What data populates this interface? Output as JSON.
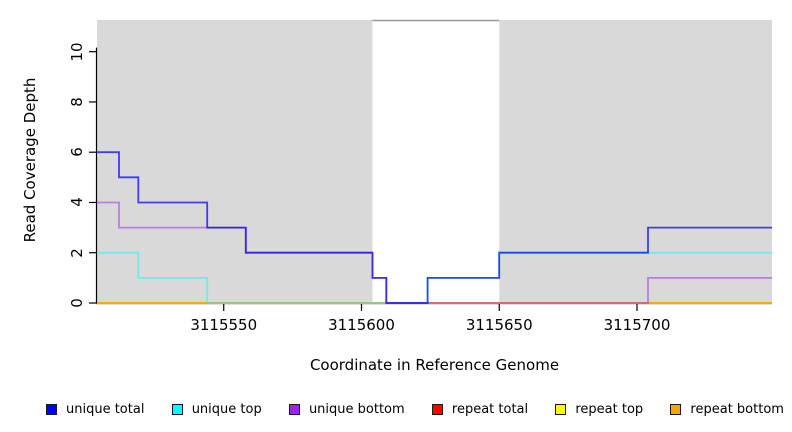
{
  "figure": {
    "background": "#ffffff",
    "shaded_color": "#d9d9d9",
    "axis_color": "#000000",
    "band_edge_color": "#999999"
  },
  "chart_data": {
    "type": "line",
    "subtype": "step",
    "title": "",
    "xlabel": "Coordinate in Reference Genome",
    "ylabel": "Read Coverage Depth",
    "xlim": [
      3115504,
      3115749
    ],
    "ylim": [
      0,
      11.26
    ],
    "x_ticks": [
      3115550,
      3115600,
      3115650,
      3115700
    ],
    "y_ticks": [
      0,
      2,
      4,
      6,
      8,
      10
    ],
    "grid": false,
    "legend_position": "bottom",
    "shaded_regions": [
      {
        "from": 3115504,
        "to": 3115604,
        "color": "#d9d9d9"
      },
      {
        "from": 3115650,
        "to": 3115749,
        "color": "#d9d9d9"
      }
    ],
    "series": [
      {
        "name": "unique total",
        "color": "#0000ff",
        "opacity": 0.72,
        "steps": [
          [
            3115504,
            6
          ],
          [
            3115512,
            5
          ],
          [
            3115519,
            4
          ],
          [
            3115544,
            3
          ],
          [
            3115558,
            2
          ],
          [
            3115604,
            1
          ],
          [
            3115609,
            0
          ],
          [
            3115624,
            1
          ],
          [
            3115650,
            2
          ],
          [
            3115704,
            3
          ],
          [
            3115749,
            3
          ]
        ]
      },
      {
        "name": "unique top",
        "color": "#00ffff",
        "opacity": 0.5,
        "steps": [
          [
            3115504,
            2
          ],
          [
            3115519,
            1
          ],
          [
            3115544,
            0
          ],
          [
            3115624,
            1
          ],
          [
            3115650,
            2
          ],
          [
            3115749,
            2
          ]
        ]
      },
      {
        "name": "unique bottom",
        "color": "#a020f0",
        "opacity": 0.5,
        "steps": [
          [
            3115504,
            4
          ],
          [
            3115512,
            3
          ],
          [
            3115558,
            2
          ],
          [
            3115604,
            1
          ],
          [
            3115609,
            0
          ],
          [
            3115704,
            1
          ],
          [
            3115749,
            1
          ]
        ]
      },
      {
        "name": "repeat total",
        "color": "#ff0000",
        "opacity": 1,
        "steps": [
          [
            3115504,
            0
          ],
          [
            3115749,
            0
          ]
        ]
      },
      {
        "name": "repeat top",
        "color": "#ffff00",
        "opacity": 1,
        "steps": [
          [
            3115504,
            0
          ],
          [
            3115749,
            0
          ]
        ]
      },
      {
        "name": "repeat bottom",
        "color": "#ffa500",
        "opacity": 1,
        "steps": [
          [
            3115504,
            0
          ],
          [
            3115749,
            0
          ]
        ]
      }
    ],
    "draw_order": [
      "repeat total",
      "repeat top",
      "repeat bottom",
      "unique top",
      "unique bottom",
      "unique total"
    ]
  }
}
